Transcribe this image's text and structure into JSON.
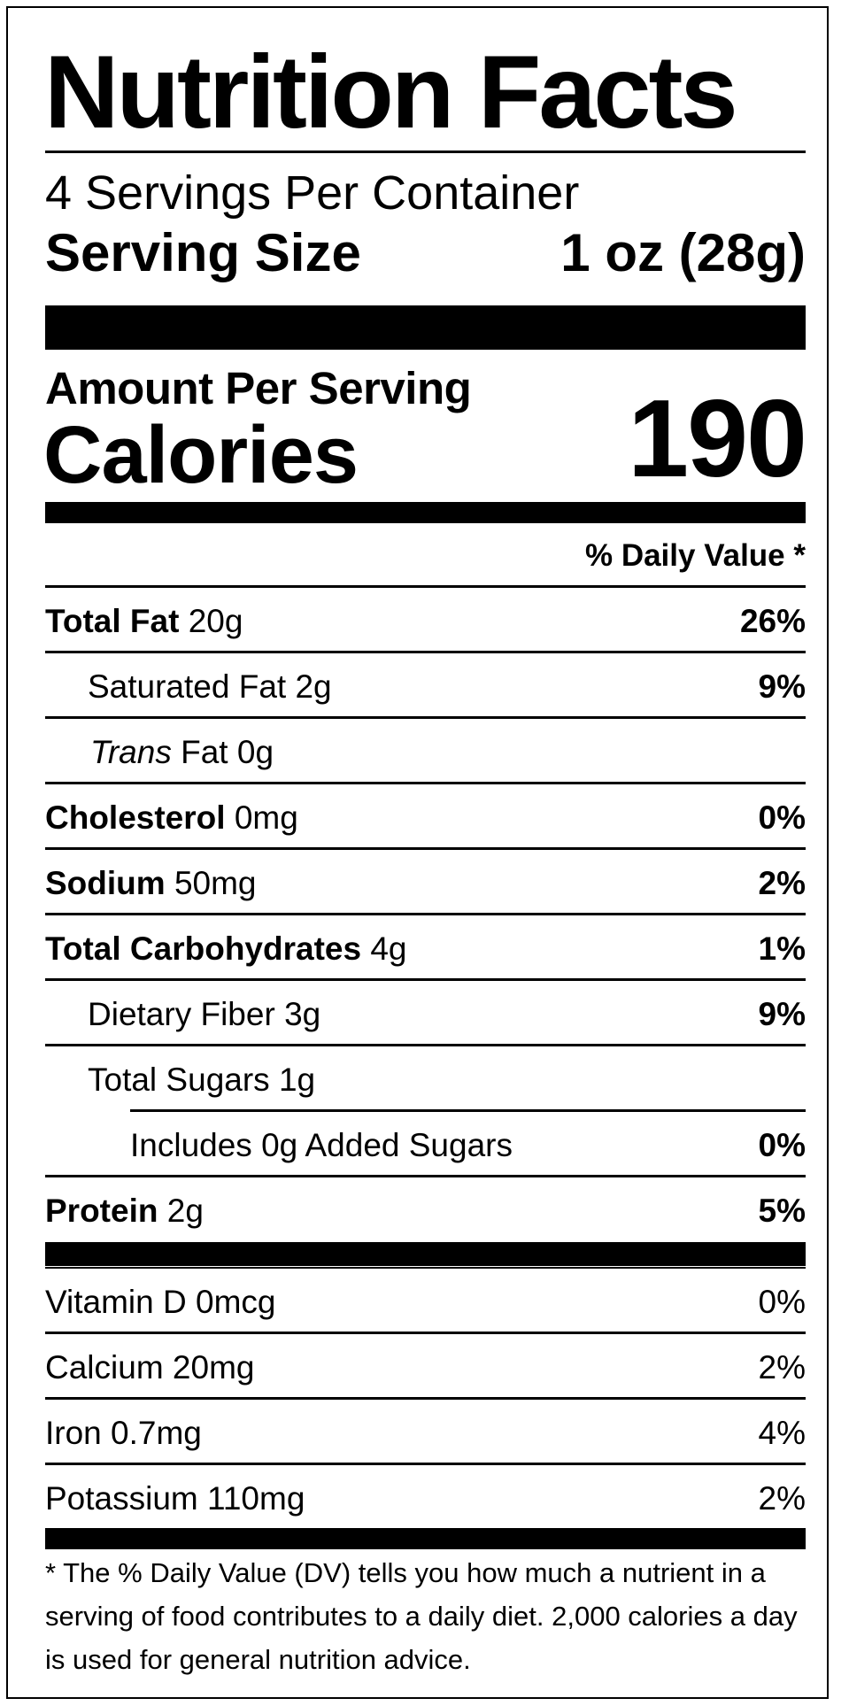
{
  "title": "Nutrition Facts",
  "servings_per_container": "4 Servings Per Container",
  "serving_size": {
    "label": "Serving Size",
    "value": "1 oz (28g)"
  },
  "amount_per_serving": "Amount Per Serving",
  "calories": {
    "label": "Calories",
    "value": "190"
  },
  "daily_value_header": "% Daily Value *",
  "nutrients": [
    {
      "name": "Total Fat",
      "amount": "20g",
      "dv": "26%"
    },
    {
      "name": "Saturated Fat",
      "amount": "2g",
      "dv": "9%"
    },
    {
      "name": "Trans",
      "name_rest": "Fat",
      "amount": "0g",
      "dv": ""
    },
    {
      "name": "Cholesterol",
      "amount": "0mg",
      "dv": "0%"
    },
    {
      "name": "Sodium",
      "amount": "50mg",
      "dv": "2%"
    },
    {
      "name": "Total Carbohydrates",
      "amount": "4g",
      "dv": "1%"
    },
    {
      "name": "Dietary Fiber",
      "amount": "3g",
      "dv": "9%"
    },
    {
      "name": "Total Sugars",
      "amount": "1g",
      "dv": ""
    },
    {
      "name": "Includes 0g Added Sugars",
      "amount": "",
      "dv": "0%"
    },
    {
      "name": "Protein",
      "amount": "2g",
      "dv": "5%"
    }
  ],
  "vitamins": [
    {
      "name": "Vitamin D",
      "amount": "0mcg",
      "dv": "0%"
    },
    {
      "name": "Calcium",
      "amount": "20mg",
      "dv": "2%"
    },
    {
      "name": "Iron",
      "amount": "0.7mg",
      "dv": "4%"
    },
    {
      "name": "Potassium",
      "amount": "110mg",
      "dv": "2%"
    }
  ],
  "footnote": "* The % Daily Value (DV) tells you how much a nutrient in a serving of food contributes to a daily diet. 2,000 calories a day is used for general nutrition advice."
}
